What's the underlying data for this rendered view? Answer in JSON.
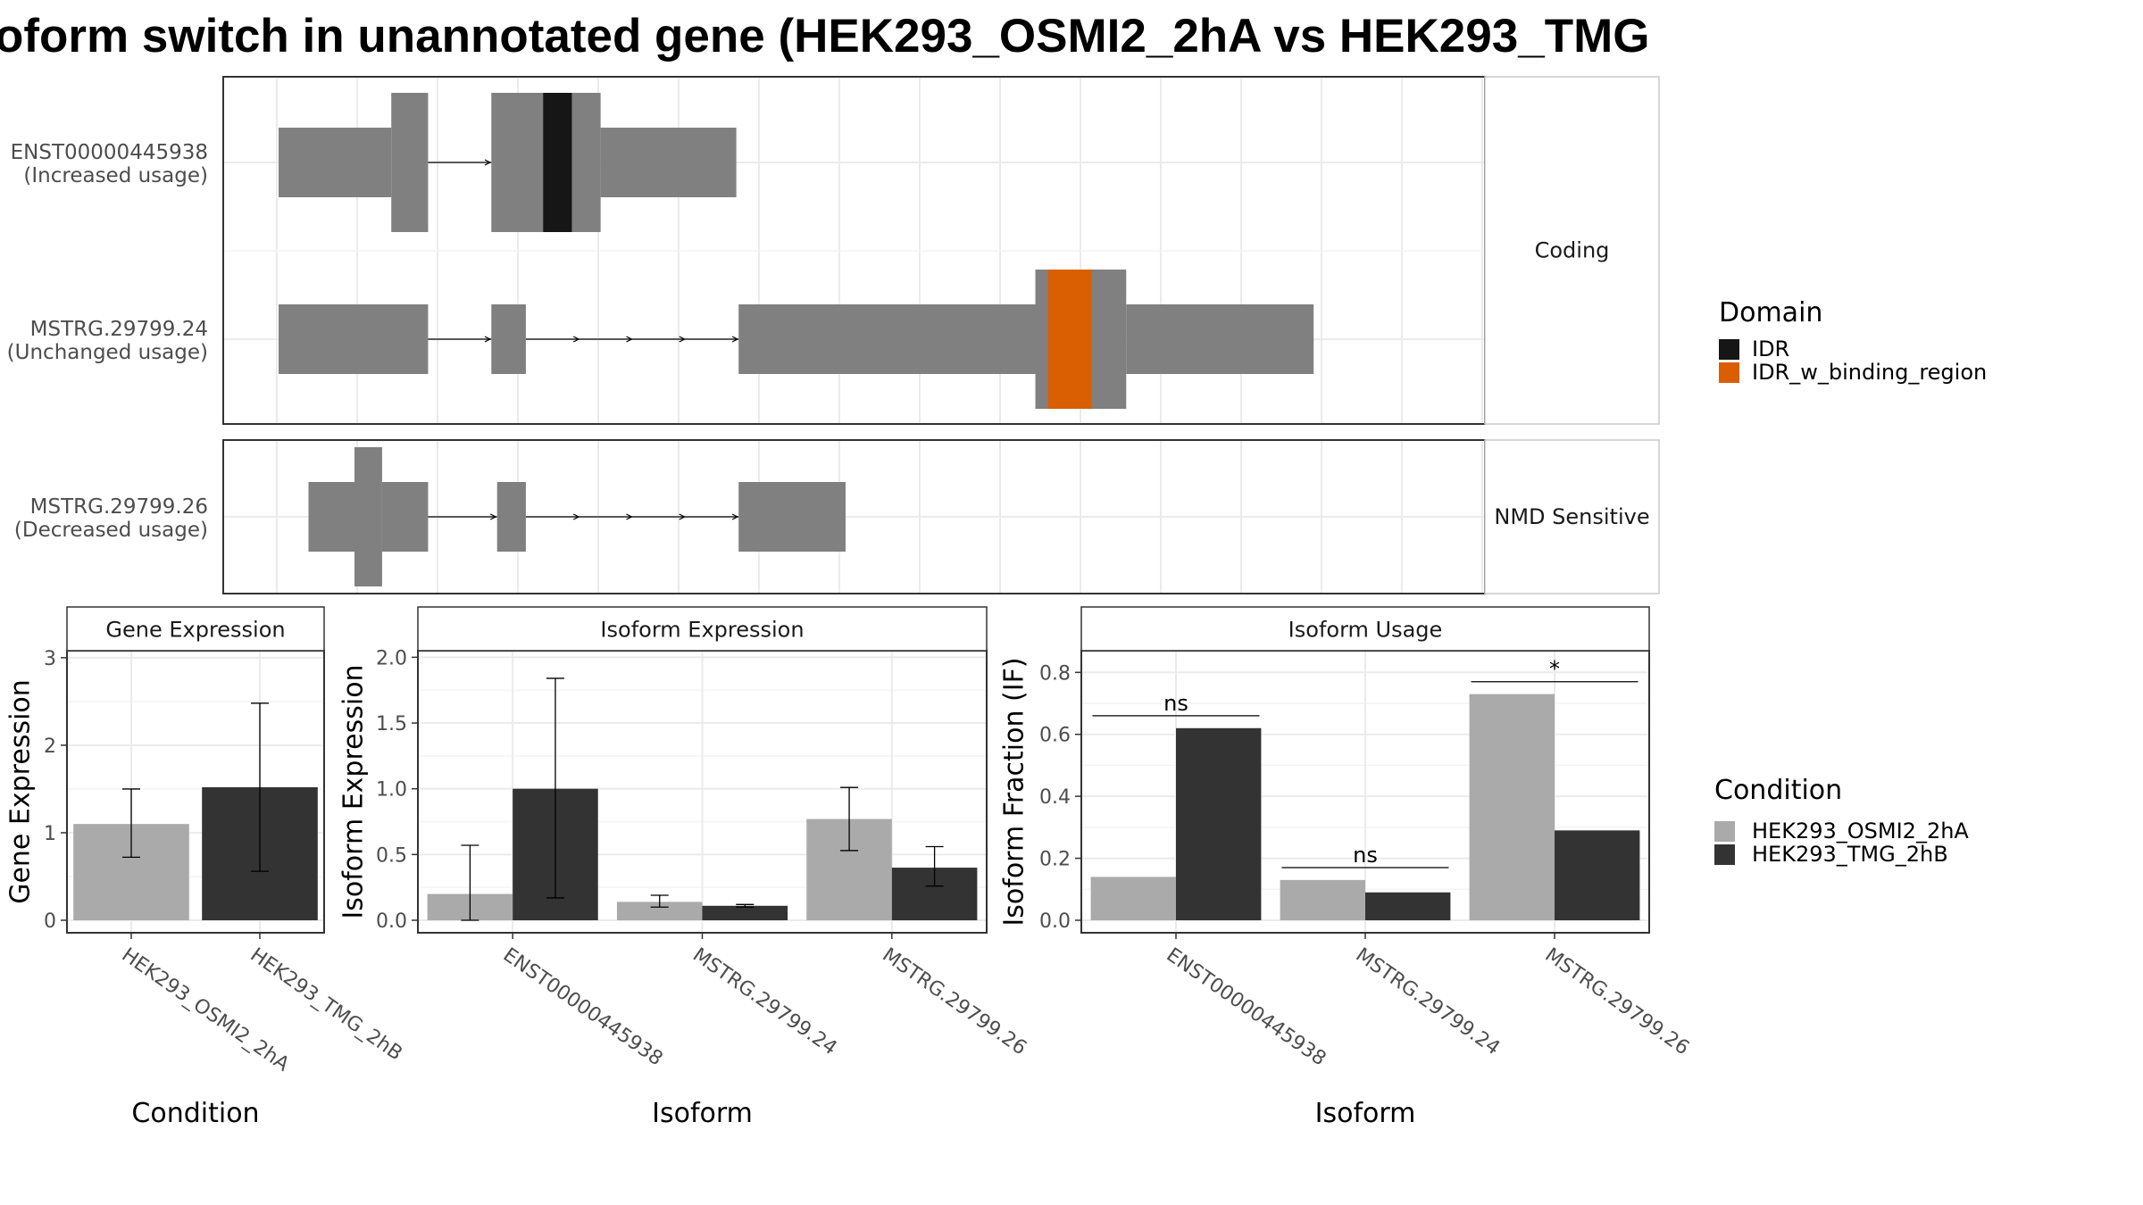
{
  "title": "oform switch in unannotated gene (HEK293_OSMI2_2hA vs HEK293_TMG",
  "colors": {
    "exon": "#808080",
    "IDR": "#161616",
    "IDR_w_binding_region": "#d95f02",
    "condA": "#aaaaaa",
    "condB": "#333333",
    "grid": "#ebebeb",
    "panel_border": "#333333"
  },
  "transcript_plot": {
    "x_range": [
      0,
      1
    ],
    "panels": [
      {
        "strip": "Coding",
        "transcripts": [
          {
            "id": "ENST00000445938",
            "usage": "(Increased usage)",
            "exons": [
              {
                "start": 0.0,
                "end": 0.098,
                "type": "utr"
              },
              {
                "start": 0.098,
                "end": 0.13,
                "type": "cds"
              },
              {
                "start": 0.185,
                "end": 0.23,
                "type": "cds"
              },
              {
                "start": 0.23,
                "end": 0.28,
                "type": "cds"
              },
              {
                "start": 0.28,
                "end": 0.398,
                "type": "utr"
              }
            ],
            "domains": [
              {
                "name": "IDR",
                "start": 0.23,
                "end": 0.255
              }
            ]
          },
          {
            "id": "MSTRG.29799.24",
            "usage": "(Unchanged usage)",
            "exons": [
              {
                "start": 0.0,
                "end": 0.13,
                "type": "utr"
              },
              {
                "start": 0.185,
                "end": 0.215,
                "type": "utr"
              },
              {
                "start": 0.4,
                "end": 0.658,
                "type": "utr"
              },
              {
                "start": 0.658,
                "end": 0.737,
                "type": "cds"
              },
              {
                "start": 0.737,
                "end": 0.9,
                "type": "utr"
              }
            ],
            "domains": [
              {
                "name": "IDR_w_binding_region",
                "start": 0.669,
                "end": 0.707
              }
            ]
          }
        ]
      },
      {
        "strip": "NMD Sensitive",
        "transcripts": [
          {
            "id": "MSTRG.29799.26",
            "usage": "(Decreased usage)",
            "exons": [
              {
                "start": 0.026,
                "end": 0.066,
                "type": "utr"
              },
              {
                "start": 0.066,
                "end": 0.09,
                "type": "cds"
              },
              {
                "start": 0.09,
                "end": 0.13,
                "type": "utr"
              },
              {
                "start": 0.19,
                "end": 0.215,
                "type": "utr"
              },
              {
                "start": 0.4,
                "end": 0.493,
                "type": "utr"
              }
            ],
            "domains": []
          }
        ]
      }
    ]
  },
  "legend_domain": {
    "title": "Domain",
    "items": [
      {
        "label": "IDR",
        "color": "#161616"
      },
      {
        "label": "IDR_w_binding_region",
        "color": "#d95f02"
      }
    ]
  },
  "legend_condition": {
    "title": "Condition",
    "items": [
      {
        "label": "HEK293_OSMI2_2hA",
        "color": "#aaaaaa"
      },
      {
        "label": "HEK293_TMG_2hB",
        "color": "#333333"
      }
    ]
  },
  "chart_data": [
    {
      "type": "bar",
      "title": "Gene Expression",
      "xlabel": "Condition",
      "ylabel": "Gene Expression",
      "ylim": [
        0,
        3.08
      ],
      "yticks": [
        0,
        1,
        2,
        3
      ],
      "categories": [
        "HEK293_OSMI2_2hA",
        "HEK293_TMG_2hB"
      ],
      "series": [
        {
          "name": "HEK293_OSMI2_2hA",
          "values": [
            1.1,
            null
          ],
          "err_low": [
            0.72,
            null
          ],
          "err_high": [
            1.5,
            null
          ]
        },
        {
          "name": "HEK293_TMG_2hB",
          "values": [
            null,
            1.52
          ],
          "err_low": [
            null,
            0.56
          ],
          "err_high": [
            null,
            2.48
          ]
        }
      ],
      "grouped": false
    },
    {
      "type": "bar",
      "title": "Isoform Expression",
      "xlabel": "Isoform",
      "ylabel": "Isoform Expression",
      "ylim": [
        0,
        2.05
      ],
      "yticks": [
        0.0,
        0.5,
        1.0,
        1.5,
        2.0
      ],
      "categories": [
        "ENST00000445938",
        "MSTRG.29799.24",
        "MSTRG.29799.26"
      ],
      "series": [
        {
          "name": "HEK293_OSMI2_2hA",
          "values": [
            0.2,
            0.14,
            0.77
          ],
          "err_low": [
            0.0,
            0.1,
            0.53
          ],
          "err_high": [
            0.57,
            0.19,
            1.01
          ]
        },
        {
          "name": "HEK293_TMG_2hB",
          "values": [
            1.0,
            0.11,
            0.4
          ],
          "err_low": [
            0.17,
            0.1,
            0.26
          ],
          "err_high": [
            1.84,
            0.12,
            0.56
          ]
        }
      ],
      "grouped": true
    },
    {
      "type": "bar",
      "title": "Isoform Usage",
      "xlabel": "Isoform",
      "ylabel": "Isoform Fraction (IF)",
      "ylim": [
        0,
        0.87
      ],
      "yticks": [
        0.0,
        0.2,
        0.4,
        0.6,
        0.8
      ],
      "categories": [
        "ENST00000445938",
        "MSTRG.29799.24",
        "MSTRG.29799.26"
      ],
      "series": [
        {
          "name": "HEK293_OSMI2_2hA",
          "values": [
            0.14,
            0.13,
            0.73
          ]
        },
        {
          "name": "HEK293_TMG_2hB",
          "values": [
            0.62,
            0.09,
            0.29
          ]
        }
      ],
      "significance": [
        {
          "label": "ns",
          "y": 0.66
        },
        {
          "label": "ns",
          "y": 0.17
        },
        {
          "label": "*",
          "y": 0.77
        }
      ],
      "grouped": true
    }
  ]
}
